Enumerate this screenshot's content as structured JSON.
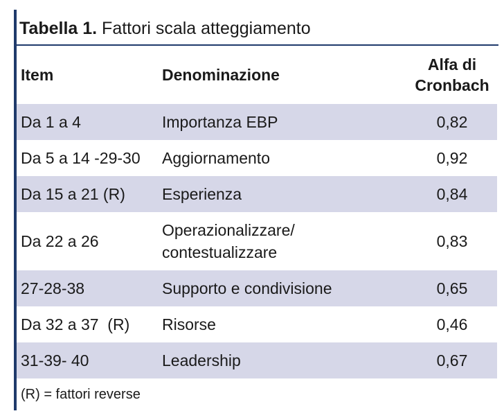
{
  "title": {
    "prefix": "Tabella 1.",
    "text": "Fattori scala atteggiamento"
  },
  "headers": {
    "item": "Item",
    "denominazione": "Denominazione",
    "alfa_line1": "Alfa di",
    "alfa_line2": "Cronbach"
  },
  "rows": [
    {
      "item": "Da 1 a 4",
      "denominazione": "Importanza EBP",
      "alfa": "0,82"
    },
    {
      "item": "Da 5 a 14 -29-30",
      "denominazione": "Aggiornamento",
      "alfa": "0,92"
    },
    {
      "item": "Da 15 a 21 (R)",
      "denominazione": "Esperienza",
      "alfa": "0,84"
    },
    {
      "item": "Da 22 a 26",
      "denominazione_line1": "Operazionalizzare/",
      "denominazione_line2": "contestualizzare",
      "alfa": "0,83"
    },
    {
      "item": "27-28-38",
      "denominazione": "Supporto e condivisione",
      "alfa": "0,65"
    },
    {
      "item": "Da 32 a 37  (R)",
      "denominazione": "Risorse",
      "alfa": "0,46"
    },
    {
      "item": "31-39- 40",
      "denominazione": "Leadership",
      "alfa": "0,67"
    }
  ],
  "note": "(R) = fattori reverse",
  "colors": {
    "accent": "#1f3a6b",
    "row_shade": "#d6d7e8"
  }
}
